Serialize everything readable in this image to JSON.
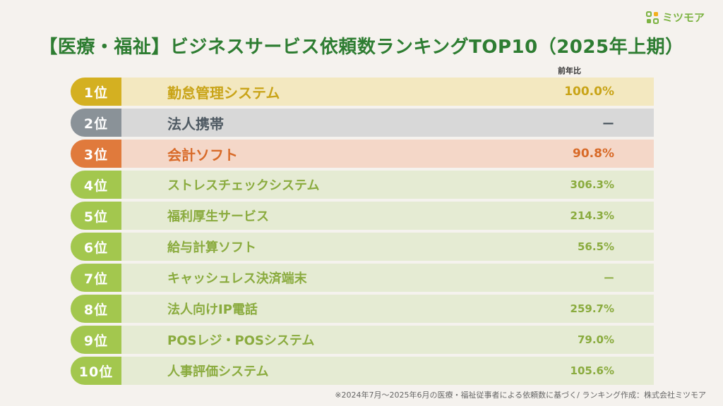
{
  "logo": {
    "text": "ミツモア",
    "color": "#7cb342"
  },
  "title": "【医療・福祉】ビジネスサービス依頼数ランキングTOP10（2025年上期）",
  "column_header": "前年比",
  "colors": {
    "gold_badge": "#d4b021",
    "gold_bg": "#f3e8c0",
    "gold_text": "#c9a418",
    "silver_badge": "#8a9298",
    "silver_bg": "#d8d8d8",
    "silver_text": "#4f5a63",
    "bronze_badge": "#e07a3c",
    "bronze_bg": "#f4d7c8",
    "bronze_text": "#d86a28",
    "green_badge": "#a3c74e",
    "green_bg": "#e5ebd3",
    "green_text": "#8aab3e"
  },
  "rankings": [
    {
      "rank": "1位",
      "name": "勤怠管理システム",
      "yoy": "100.0%",
      "tier": "gold"
    },
    {
      "rank": "2位",
      "name": "法人携帯",
      "yoy": "ー",
      "tier": "silver"
    },
    {
      "rank": "3位",
      "name": "会計ソフト",
      "yoy": "90.8%",
      "tier": "bronze"
    },
    {
      "rank": "4位",
      "name": "ストレスチェックシステム",
      "yoy": "306.3%",
      "tier": "green"
    },
    {
      "rank": "5位",
      "name": "福利厚生サービス",
      "yoy": "214.3%",
      "tier": "green"
    },
    {
      "rank": "6位",
      "name": "給与計算ソフト",
      "yoy": "56.5%",
      "tier": "green"
    },
    {
      "rank": "7位",
      "name": "キャッシュレス決済端末",
      "yoy": "ー",
      "tier": "green"
    },
    {
      "rank": "8位",
      "name": "法人向けIP電話",
      "yoy": "259.7%",
      "tier": "green"
    },
    {
      "rank": "9位",
      "name": "POSレジ・POSシステム",
      "yoy": "79.0%",
      "tier": "green"
    },
    {
      "rank": "10位",
      "name": "人事評価システム",
      "yoy": "105.6%",
      "tier": "green"
    }
  ],
  "footnote": "※2024年7月〜2025年6月の医療・福祉従事者による依頼数に基づく/ ランキング作成：株式会社ミツモア"
}
